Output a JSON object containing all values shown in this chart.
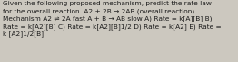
{
  "text_lines": [
    "Given the following proposed mechanism, predict the rate law",
    "for the overall reaction. A2 + 2B → 2AB (overall reaction)",
    "Mechanism A2 ⇌ 2A fast A + B → AB slow A) Rate = k[A][B] B)",
    "Rate = k[A2][B] C) Rate = k[A2][B]1/2 D) Rate = k[A2] E) Rate =",
    "k [A2]1/2[B]"
  ],
  "bg_color": "#ccc8bf",
  "text_color": "#1a1a1a",
  "font_size": 5.3,
  "fig_width": 2.62,
  "fig_height": 0.69,
  "dpi": 100
}
